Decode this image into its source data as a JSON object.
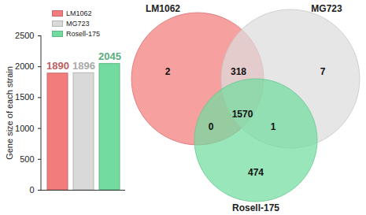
{
  "chart_data": [
    {
      "type": "bar",
      "y_label": "Gene size of each strain",
      "categories": [
        "LM1062",
        "MG723",
        "Rosell-175"
      ],
      "values": [
        1890,
        1896,
        2045
      ],
      "colors": [
        "#f27c7c",
        "#d9d9d9",
        "#72dca0"
      ],
      "ylim": [
        0,
        2500
      ],
      "yticks": [
        0,
        500,
        1000,
        1500,
        2000,
        2500
      ],
      "data_labels": true,
      "tick_labels": "y",
      "legend": "top-left",
      "grid": false
    },
    {
      "type": "venn",
      "sets": [
        {
          "name": "LM1062",
          "color": "#f27c7c"
        },
        {
          "name": "MG723",
          "color": "#dcdcdc"
        },
        {
          "name": "Rosell-175",
          "color": "#72dca0"
        }
      ],
      "regions": [
        {
          "sets": [
            "LM1062"
          ],
          "value": 2
        },
        {
          "sets": [
            "MG723"
          ],
          "value": 7
        },
        {
          "sets": [
            "Rosell-175"
          ],
          "value": 474
        },
        {
          "sets": [
            "LM1062",
            "MG723"
          ],
          "value": 318
        },
        {
          "sets": [
            "LM1062",
            "Rosell-175"
          ],
          "value": 0
        },
        {
          "sets": [
            "MG723",
            "Rosell-175"
          ],
          "value": 1
        },
        {
          "sets": [
            "LM1062",
            "MG723",
            "Rosell-175"
          ],
          "value": 1570
        }
      ]
    }
  ]
}
